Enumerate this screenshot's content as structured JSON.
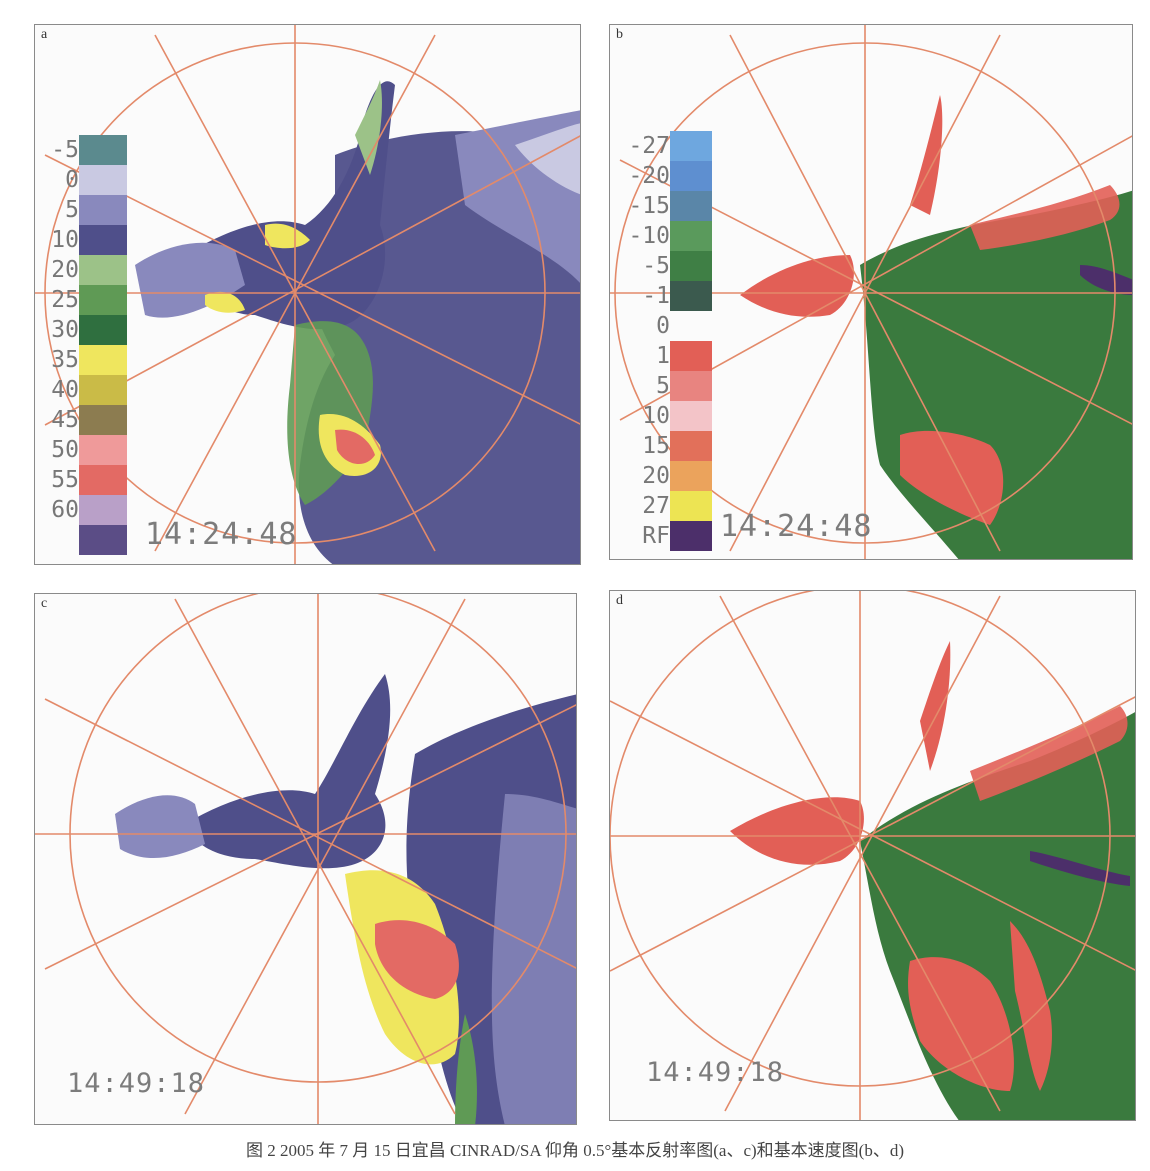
{
  "figure": {
    "caption": "图 2 2005 年 7 月 15 日宜昌 CINRAD/SA 仰角 0.5°基本反射率图(a、c)和基本速度图(b、d)"
  },
  "panels": [
    {
      "letter": "a",
      "timestamp": "14:24:48",
      "kind": "reflectivity"
    },
    {
      "letter": "b",
      "timestamp": "14:24:48",
      "kind": "velocity"
    },
    {
      "letter": "c",
      "timestamp": "14:49:18",
      "kind": "reflectivity"
    },
    {
      "letter": "d",
      "timestamp": "14:49:18",
      "kind": "velocity"
    }
  ],
  "reflectivity_legend": [
    {
      "label": "-5",
      "color": "#5b8a8e"
    },
    {
      "label": "0",
      "color": "#c9c9e2"
    },
    {
      "label": "5",
      "color": "#8989bd"
    },
    {
      "label": "10",
      "color": "#4f4f8a"
    },
    {
      "label": "20",
      "color": "#9cc288"
    },
    {
      "label": "25",
      "color": "#5f9a55"
    },
    {
      "label": "30",
      "color": "#2f6f3f"
    },
    {
      "label": "35",
      "color": "#efe65e"
    },
    {
      "label": "40",
      "color": "#cabb47"
    },
    {
      "label": "45",
      "color": "#8c7c50"
    },
    {
      "label": "50",
      "color": "#ef9a9a"
    },
    {
      "label": "55",
      "color": "#e36a64"
    },
    {
      "label": "60",
      "color": "#b9a0c8"
    },
    {
      "label": "",
      "color": "#5b4d86"
    }
  ],
  "velocity_legend": [
    {
      "label": "-27",
      "color": "#6ea7df"
    },
    {
      "label": "-20",
      "color": "#5e8fd0"
    },
    {
      "label": "-15",
      "color": "#5a86a8"
    },
    {
      "label": "-10",
      "color": "#5a9a5c"
    },
    {
      "label": "-5",
      "color": "#3f7f45"
    },
    {
      "label": "-1",
      "color": "#3b5a4e"
    },
    {
      "label": "0",
      "color": ""
    },
    {
      "label": "1",
      "color": "#e25f56"
    },
    {
      "label": "5",
      "color": "#e88480"
    },
    {
      "label": "10",
      "color": "#f3c4c8"
    },
    {
      "label": "15",
      "color": "#e2705a"
    },
    {
      "label": "20",
      "color": "#eba35c"
    },
    {
      "label": "27",
      "color": "#ede453"
    },
    {
      "label": "RF",
      "color": "#4c2f6a"
    }
  ],
  "colors": {
    "range_ring": "#e38a6a",
    "reflectivity_bg": "#4f4f8a",
    "reflectivity_light": "#c9c9e2",
    "velocity_green": "#3a7a3e",
    "velocity_red": "#e25f56"
  }
}
